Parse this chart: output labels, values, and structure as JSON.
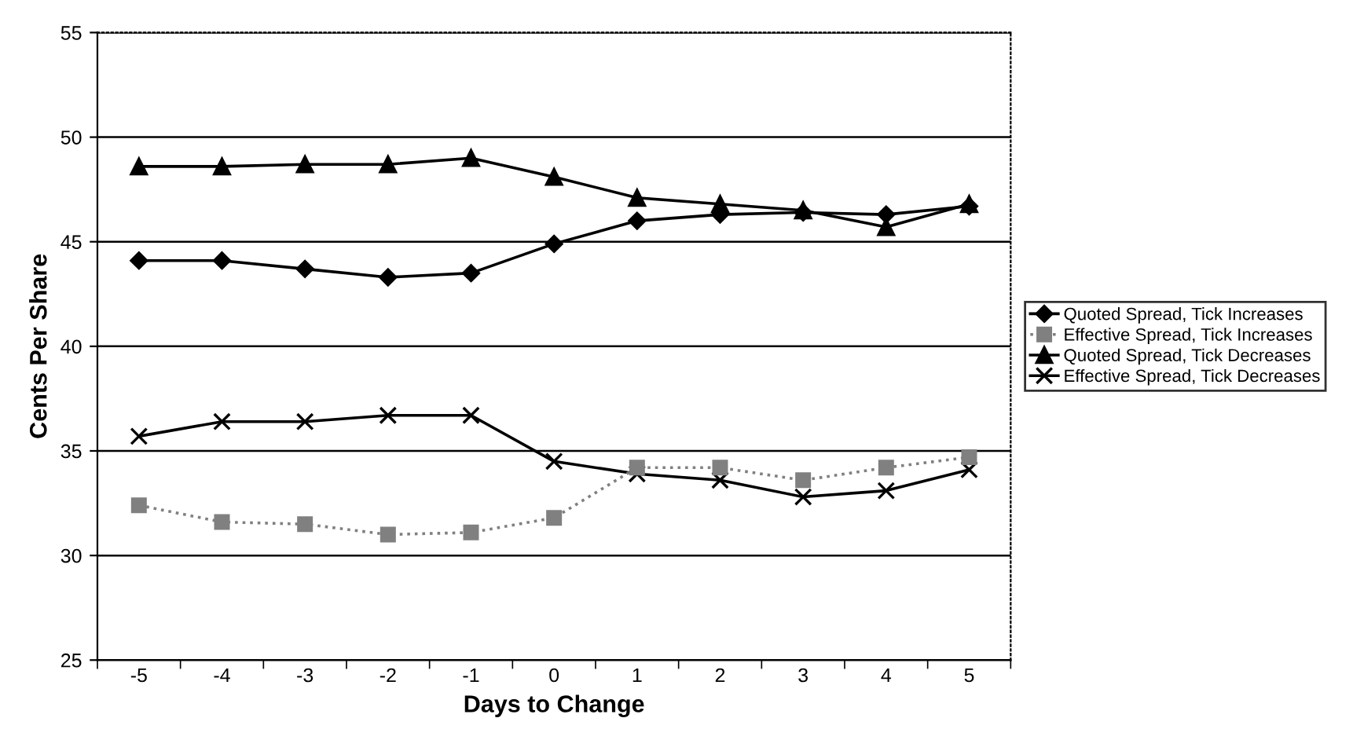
{
  "chart_data": {
    "type": "line",
    "xlabel": "Days to Change",
    "ylabel": "Cents Per Share",
    "categories": [
      "-5",
      "-4",
      "-3",
      "-2",
      "-1",
      "0",
      "1",
      "2",
      "3",
      "4",
      "5"
    ],
    "series": [
      {
        "name": "Quoted Spread, Tick Increases",
        "color": "#000000",
        "marker": "diamond",
        "line_style": "solid",
        "values": [
          44.1,
          44.1,
          43.7,
          43.3,
          43.5,
          44.9,
          46.0,
          46.3,
          46.4,
          46.3,
          46.7
        ]
      },
      {
        "name": "Effective Spread, Tick Increases",
        "color": "#808080",
        "marker": "square",
        "line_style": "dotted",
        "values": [
          32.4,
          31.6,
          31.5,
          31.0,
          31.1,
          31.8,
          34.2,
          34.2,
          33.6,
          34.2,
          34.7
        ]
      },
      {
        "name": "Quoted Spread, Tick Decreases",
        "color": "#000000",
        "marker": "triangle",
        "line_style": "solid",
        "values": [
          48.6,
          48.6,
          48.7,
          48.7,
          49.0,
          48.1,
          47.1,
          46.8,
          46.5,
          45.7,
          46.8
        ]
      },
      {
        "name": "Effective Spread, Tick Decreases",
        "color": "#000000",
        "marker": "cross",
        "line_style": "solid",
        "values": [
          35.7,
          36.4,
          36.4,
          36.7,
          36.7,
          34.5,
          33.9,
          33.6,
          32.8,
          33.1,
          34.1
        ]
      }
    ],
    "ylim": [
      25,
      55
    ],
    "yticks": [
      25,
      30,
      35,
      40,
      45,
      50,
      55
    ],
    "grid": "y",
    "legend": "right"
  }
}
